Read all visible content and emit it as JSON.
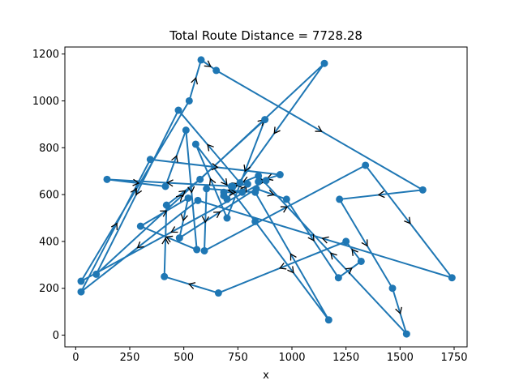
{
  "chart_data": {
    "type": "line",
    "title": "Total Route Distance = 7728.28",
    "xlabel": "x",
    "ylabel": "",
    "xlim": [
      -50,
      1810
    ],
    "ylim": [
      -50,
      1230
    ],
    "xticks": [
      0,
      250,
      500,
      750,
      1000,
      1250,
      1500,
      1750
    ],
    "yticks": [
      0,
      200,
      400,
      600,
      800,
      1000,
      1200
    ],
    "grid": false,
    "color": "#1f77b4",
    "series": [
      {
        "x": [
          565,
          25,
          345,
          945,
          845,
          880,
          25,
          525,
          580,
          650,
          1605,
          1220,
          1465,
          1530,
          845,
          725,
          145,
          415,
          510,
          560,
          300,
          520,
          480,
          835,
          975,
          1215,
          1320,
          1250,
          660,
          410,
          420,
          575,
          1150,
          700,
          685,
          685,
          770,
          795,
          720,
          760,
          475,
          95,
          875,
          700,
          555,
          830,
          1170,
          830,
          605,
          595,
          1340,
          1740,
          565
        ],
        "y": [
          575,
          185,
          750,
          685,
          655,
          660,
          230,
          1000,
          1175,
          1130,
          620,
          580,
          200,
          5,
          680,
          635,
          665,
          635,
          875,
          365,
          465,
          585,
          415,
          625,
          580,
          245,
          315,
          400,
          180,
          250,
          555,
          665,
          1160,
          580,
          595,
          610,
          610,
          645,
          635,
          650,
          960,
          260,
          920,
          500,
          815,
          485,
          65,
          610,
          625,
          360,
          725,
          245,
          575
        ]
      }
    ]
  }
}
